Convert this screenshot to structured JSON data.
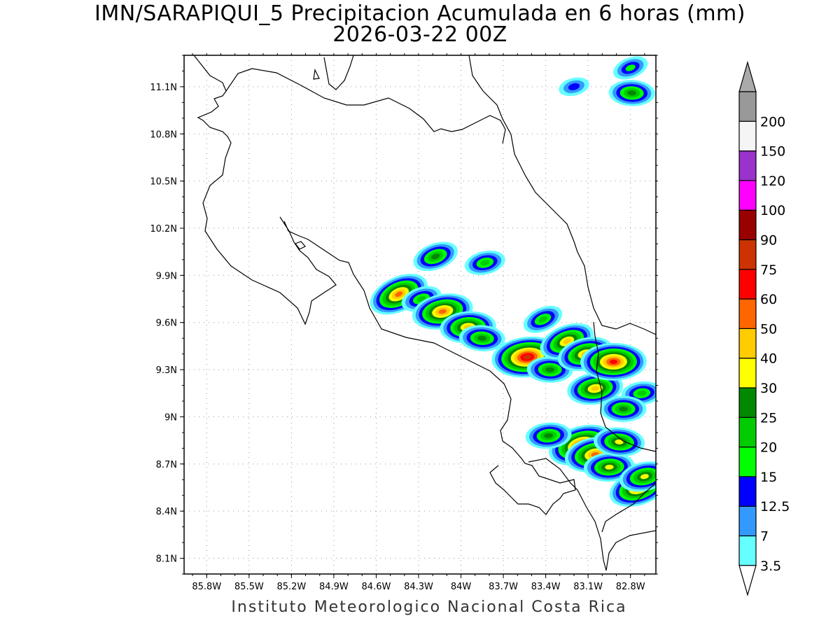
{
  "title": {
    "line1": "IMN/SARAPIQUI_5 Precipitacion Acumulada en 6 horas (mm)",
    "line2": "2026-03-22 00Z"
  },
  "footer": "Instituto Meteorologico Nacional Costa Rica",
  "axes": {
    "lon_ticks": [
      "85.8W",
      "85.5W",
      "85.2W",
      "84.9W",
      "84.6W",
      "84.3W",
      "84W",
      "83.7W",
      "83.4W",
      "83.1W",
      "82.8W"
    ],
    "lat_ticks": [
      "11.1N",
      "10.8N",
      "10.5N",
      "10.2N",
      "9.9N",
      "9.6N",
      "9.3N",
      "9N",
      "8.7N",
      "8.4N",
      "8.1N"
    ],
    "lon_range": [
      -85.96,
      -82.62
    ],
    "lat_range": [
      8.0,
      11.3
    ],
    "grid": true
  },
  "colorbar": {
    "levels": [
      "3.5",
      "7",
      "12.5",
      "15",
      "20",
      "25",
      "30",
      "40",
      "50",
      "60",
      "75",
      "90",
      "100",
      "120",
      "150",
      "200"
    ],
    "colors": [
      "#66ffff",
      "#3399ff",
      "#0000ff",
      "#00ff00",
      "#00cc00",
      "#008800",
      "#ffff00",
      "#ffcc00",
      "#ff6600",
      "#ff0000",
      "#cc3300",
      "#990000",
      "#ff00ff",
      "#9933cc",
      "#f5f5f5",
      "#999999"
    ],
    "below_color": "#ffffff",
    "above_color": "#aaaaaa"
  },
  "precip_cells": [
    {
      "lon": -84.44,
      "lat": 9.78,
      "max": 50
    },
    {
      "lon": -84.28,
      "lat": 9.75,
      "max": 20
    },
    {
      "lon": -84.13,
      "lat": 9.67,
      "max": 50
    },
    {
      "lon": -83.95,
      "lat": 9.57,
      "max": 40
    },
    {
      "lon": -83.85,
      "lat": 9.5,
      "max": 25
    },
    {
      "lon": -84.18,
      "lat": 10.02,
      "max": 25
    },
    {
      "lon": -83.83,
      "lat": 9.98,
      "max": 20
    },
    {
      "lon": -83.53,
      "lat": 9.38,
      "max": 75
    },
    {
      "lon": -83.37,
      "lat": 9.3,
      "max": 25
    },
    {
      "lon": -83.25,
      "lat": 9.48,
      "max": 40
    },
    {
      "lon": -83.12,
      "lat": 9.4,
      "max": 40
    },
    {
      "lon": -83.05,
      "lat": 9.18,
      "max": 40
    },
    {
      "lon": -82.92,
      "lat": 9.35,
      "max": 60
    },
    {
      "lon": -83.42,
      "lat": 9.62,
      "max": 20
    },
    {
      "lon": -83.15,
      "lat": 8.82,
      "max": 60
    },
    {
      "lon": -83.05,
      "lat": 8.76,
      "max": 50
    },
    {
      "lon": -82.95,
      "lat": 8.68,
      "max": 30
    },
    {
      "lon": -82.88,
      "lat": 8.84,
      "max": 30
    },
    {
      "lon": -82.74,
      "lat": 8.55,
      "max": 50
    },
    {
      "lon": -82.7,
      "lat": 8.62,
      "max": 30
    },
    {
      "lon": -83.38,
      "lat": 8.88,
      "max": 25
    },
    {
      "lon": -82.79,
      "lat": 11.06,
      "max": 25
    },
    {
      "lon": -82.8,
      "lat": 11.22,
      "max": 15
    },
    {
      "lon": -83.2,
      "lat": 11.1,
      "max": 12.5
    },
    {
      "lon": -82.72,
      "lat": 9.15,
      "max": 20
    },
    {
      "lon": -82.85,
      "lat": 9.05,
      "max": 25
    }
  ]
}
